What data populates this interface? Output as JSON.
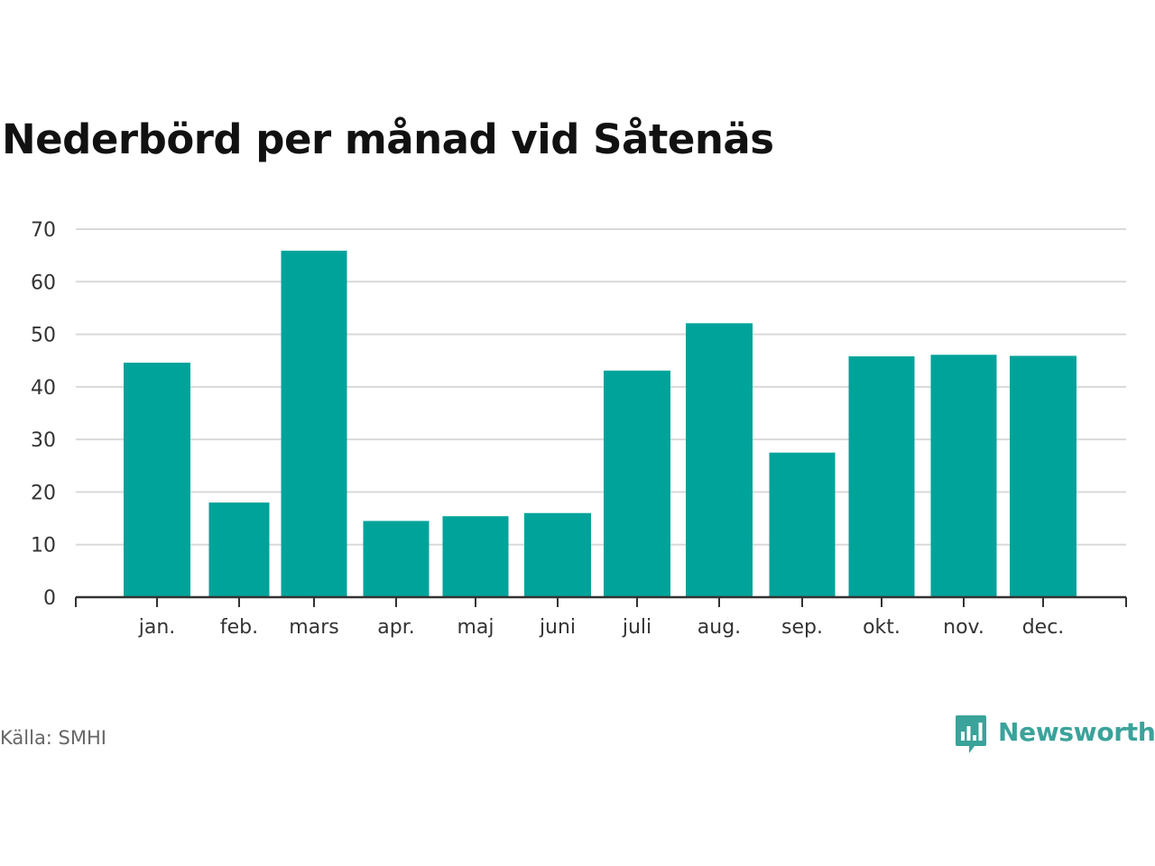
{
  "chart_data": {
    "type": "bar",
    "title": "Nederbörd per månad vid Såtenäs",
    "xlabel": "",
    "ylabel": "",
    "categories": [
      "jan.",
      "feb.",
      "mars",
      "apr.",
      "maj",
      "juni",
      "juli",
      "aug.",
      "sep.",
      "okt.",
      "nov.",
      "dec."
    ],
    "values": [
      44.6,
      18.0,
      65.9,
      14.5,
      15.4,
      16.0,
      43.1,
      52.1,
      27.5,
      45.8,
      46.1,
      45.9
    ],
    "ylim": [
      0,
      70
    ],
    "yticks": [
      "0",
      "10",
      "20",
      "30",
      "40",
      "50",
      "60",
      "70"
    ],
    "grid": true,
    "bar_color": "#00a39a",
    "grid_color": "#d9d9d9",
    "axis_color": "#333333"
  },
  "source": "Källa: SMHI",
  "brand": {
    "name": "Newsworthy",
    "icon": "newsworthy-logo-icon",
    "color": "#3aa39a"
  }
}
